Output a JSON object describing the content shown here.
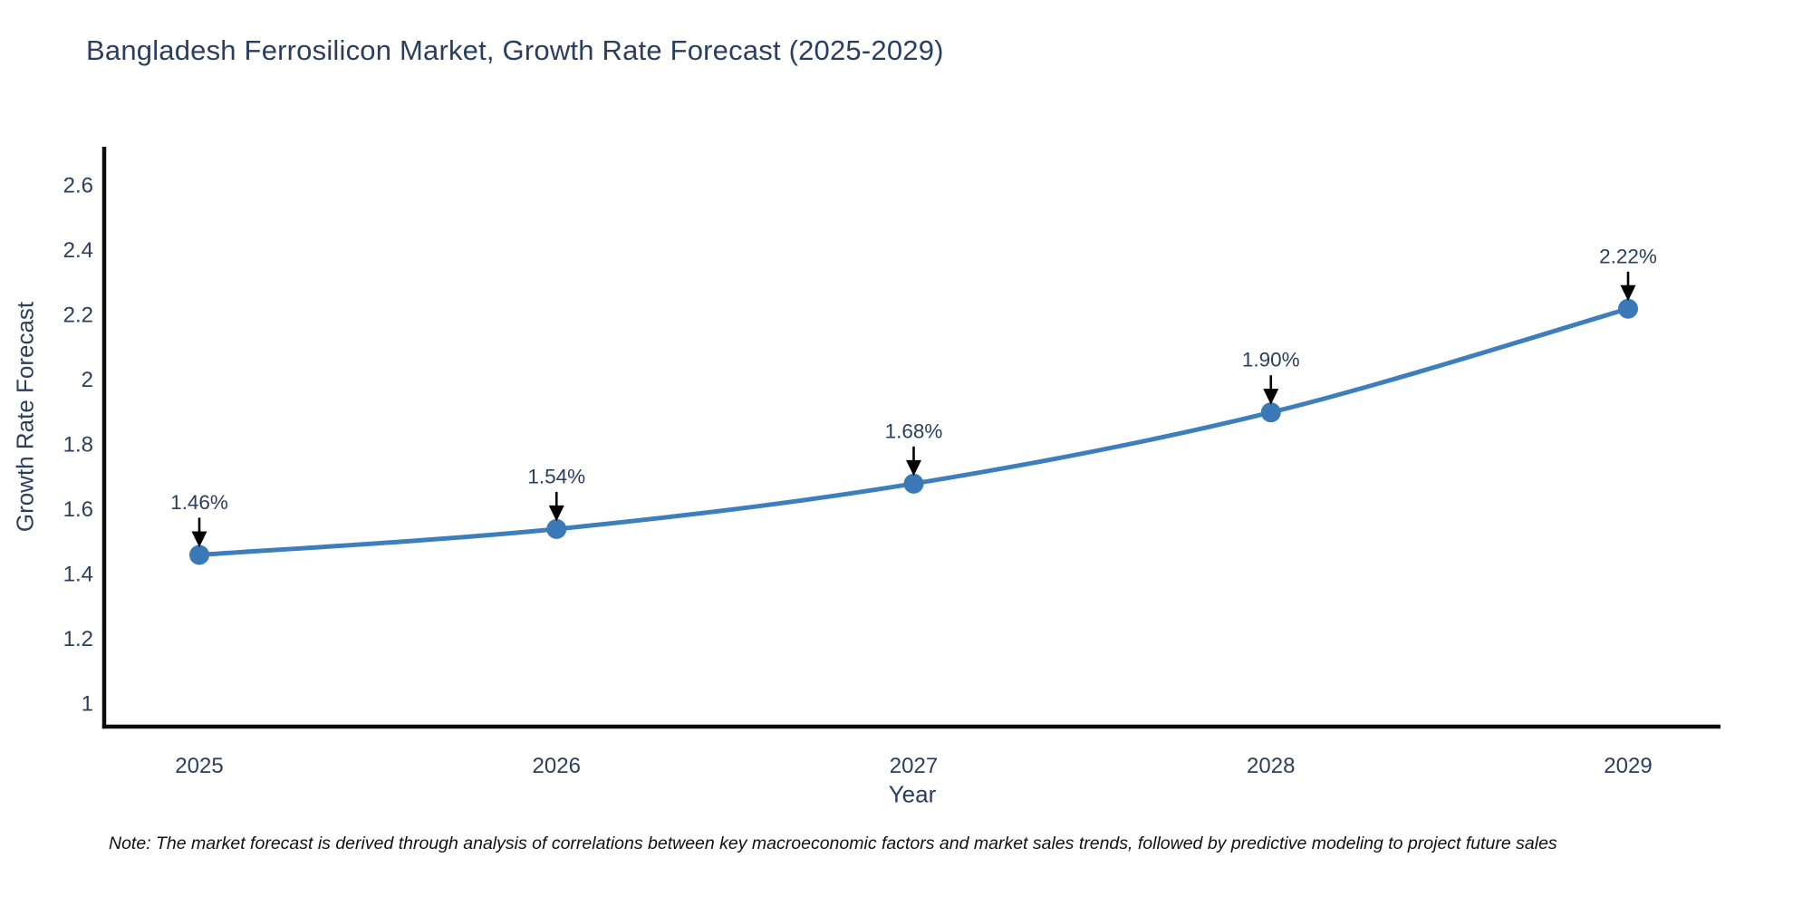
{
  "title": "Bangladesh Ferrosilicon Market, Growth Rate Forecast (2025-2029)",
  "note": "Note: The market forecast is derived through analysis of correlations between key macroeconomic factors and market sales trends, followed by predictive modeling to project future sales",
  "chart_data": {
    "type": "line",
    "title": "Bangladesh Ferrosilicon Market, Growth Rate Forecast (2025-2029)",
    "xlabel": "Year",
    "ylabel": "Growth Rate Forecast",
    "x": [
      2025,
      2026,
      2027,
      2028,
      2029
    ],
    "y": [
      1.46,
      1.54,
      1.68,
      1.9,
      2.22
    ],
    "point_labels": [
      "1.46%",
      "1.54%",
      "1.68%",
      "1.90%",
      "2.22%"
    ],
    "xtick_labels": [
      "2025",
      "2026",
      "2027",
      "2028",
      "2029"
    ],
    "yticks": [
      1,
      1.2,
      1.4,
      1.6,
      1.8,
      2,
      2.2,
      2.4,
      2.6
    ],
    "ytick_labels": [
      "1",
      "1.2",
      "1.4",
      "1.6",
      "1.8",
      "2",
      "2.2",
      "2.4",
      "2.6"
    ],
    "ylim": [
      0.93,
      2.72
    ],
    "grid": false,
    "legend": "none",
    "line_shape": "spline",
    "line_color": "#3d7ebd",
    "marker_color": "#3a78b8",
    "axis_color": "#0d0d0d",
    "annotation_arrow_color": "#000000",
    "text_color": "#2a3f5f"
  }
}
